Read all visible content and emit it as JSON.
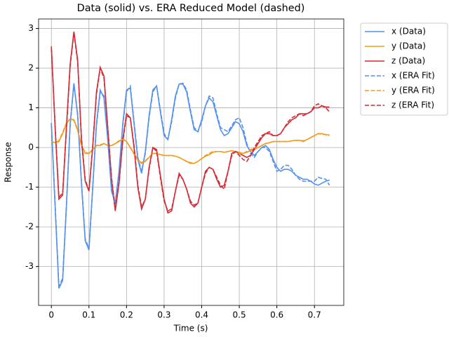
{
  "chart_data": {
    "type": "line",
    "title": "Data (solid) vs. ERA Reduced Model (dashed)",
    "x_label": "Time (s)",
    "y_label": "Response",
    "x": [
      0,
      0.01,
      0.02,
      0.03,
      0.04,
      0.05,
      0.06,
      0.07,
      0.08,
      0.09,
      0.1,
      0.11,
      0.12,
      0.13,
      0.14,
      0.15,
      0.16,
      0.17,
      0.18,
      0.19,
      0.2,
      0.21,
      0.22,
      0.23,
      0.24,
      0.25,
      0.26,
      0.27,
      0.28,
      0.29,
      0.3,
      0.31,
      0.32,
      0.33,
      0.34,
      0.35,
      0.36,
      0.37,
      0.38,
      0.39,
      0.4,
      0.41,
      0.42,
      0.43,
      0.44,
      0.45,
      0.46,
      0.47,
      0.48,
      0.49,
      0.5,
      0.51,
      0.52,
      0.53,
      0.54,
      0.55,
      0.56,
      0.57,
      0.58,
      0.59,
      0.6,
      0.61,
      0.62,
      0.63,
      0.64,
      0.65,
      0.66,
      0.67,
      0.68,
      0.69,
      0.7,
      0.71,
      0.72,
      0.73,
      0.74
    ],
    "series": [
      {
        "name": "x (Data)",
        "color": "#5591ee",
        "linestyle": "solid",
        "values": [
          0.62,
          -1.5,
          -3.55,
          -3.35,
          -1.5,
          0.6,
          1.62,
          0.8,
          -0.9,
          -2.35,
          -2.58,
          -1.0,
          0.6,
          1.45,
          1.25,
          0.2,
          -1.1,
          -1.4,
          -0.6,
          0.6,
          1.45,
          1.5,
          0.6,
          -0.3,
          -0.65,
          -0.1,
          0.8,
          1.45,
          1.55,
          0.9,
          0.3,
          0.2,
          0.7,
          1.3,
          1.6,
          1.6,
          1.4,
          0.9,
          0.45,
          0.4,
          0.7,
          1.05,
          1.25,
          1.15,
          0.8,
          0.45,
          0.3,
          0.35,
          0.5,
          0.65,
          0.6,
          0.4,
          0.05,
          -0.1,
          -0.2,
          -0.1,
          0.0,
          0.05,
          -0.05,
          -0.3,
          -0.5,
          -0.6,
          -0.55,
          -0.55,
          -0.6,
          -0.7,
          -0.75,
          -0.8,
          -0.8,
          -0.85,
          -0.92,
          -0.95,
          -0.9,
          -0.85,
          -0.82
        ]
      },
      {
        "name": "y (Data)",
        "color": "#f39c1f",
        "linestyle": "solid",
        "values": [
          0.15,
          0.12,
          0.15,
          0.35,
          0.6,
          0.72,
          0.7,
          0.45,
          0.05,
          -0.15,
          -0.15,
          -0.05,
          0.05,
          0.05,
          0.1,
          0.05,
          0.05,
          0.1,
          0.15,
          0.22,
          0.15,
          0.0,
          -0.15,
          -0.3,
          -0.4,
          -0.35,
          -0.25,
          -0.15,
          -0.15,
          -0.18,
          -0.2,
          -0.2,
          -0.2,
          -0.22,
          -0.25,
          -0.3,
          -0.35,
          -0.4,
          -0.4,
          -0.35,
          -0.28,
          -0.22,
          -0.18,
          -0.12,
          -0.1,
          -0.1,
          -0.12,
          -0.1,
          -0.08,
          -0.1,
          -0.12,
          -0.15,
          -0.12,
          -0.08,
          -0.05,
          0.0,
          0.05,
          0.1,
          0.12,
          0.15,
          0.15,
          0.15,
          0.15,
          0.15,
          0.17,
          0.18,
          0.18,
          0.15,
          0.2,
          0.25,
          0.3,
          0.35,
          0.35,
          0.32,
          0.32
        ]
      },
      {
        "name": "z (Data)",
        "color": "#d62a35",
        "linestyle": "solid",
        "values": [
          2.55,
          0.5,
          -1.3,
          -1.2,
          0.5,
          2.1,
          2.92,
          2.2,
          0.2,
          -0.85,
          -1.1,
          0.0,
          1.4,
          2.02,
          1.8,
          0.5,
          -0.8,
          -1.6,
          -0.9,
          0.2,
          0.85,
          0.75,
          0.0,
          -1.0,
          -1.55,
          -1.3,
          -0.5,
          0.0,
          -0.05,
          -0.7,
          -1.3,
          -1.65,
          -1.6,
          -1.1,
          -0.65,
          -0.8,
          -1.05,
          -1.4,
          -1.5,
          -1.4,
          -1.0,
          -0.6,
          -0.5,
          -0.55,
          -0.8,
          -1.0,
          -0.95,
          -0.6,
          -0.15,
          -0.1,
          -0.15,
          -0.2,
          -0.25,
          -0.2,
          -0.05,
          0.1,
          0.25,
          0.35,
          0.35,
          0.3,
          0.3,
          0.35,
          0.5,
          0.6,
          0.7,
          0.75,
          0.85,
          0.85,
          0.85,
          0.9,
          1.0,
          1.0,
          1.05,
          1.02,
          1.02
        ]
      },
      {
        "name": "x (ERA Fit)",
        "color": "#5591ee",
        "linestyle": "dashed",
        "values": [
          0.6,
          -1.4,
          -3.5,
          -3.3,
          -1.45,
          0.55,
          1.6,
          0.85,
          -0.85,
          -2.3,
          -2.55,
          -1.05,
          0.55,
          1.4,
          1.3,
          0.25,
          -1.05,
          -1.45,
          -0.65,
          0.55,
          1.4,
          1.55,
          0.65,
          -0.25,
          -0.6,
          -0.15,
          0.75,
          1.4,
          1.55,
          0.95,
          0.35,
          0.2,
          0.65,
          1.25,
          1.6,
          1.62,
          1.45,
          0.95,
          0.5,
          0.4,
          0.65,
          1.05,
          1.3,
          1.25,
          0.85,
          0.5,
          0.45,
          0.4,
          0.55,
          0.7,
          0.75,
          0.5,
          0.1,
          -0.15,
          -0.25,
          -0.1,
          0.0,
          0.0,
          -0.1,
          -0.35,
          -0.6,
          -0.55,
          -0.45,
          -0.45,
          -0.55,
          -0.7,
          -0.8,
          -0.85,
          -0.85,
          -0.85,
          -0.85,
          -0.75,
          -0.78,
          -0.8,
          -0.95
        ]
      },
      {
        "name": "y (ERA Fit)",
        "color": "#f39c1f",
        "linestyle": "dashed",
        "values": [
          0.15,
          0.12,
          0.17,
          0.38,
          0.62,
          0.72,
          0.68,
          0.42,
          0.05,
          -0.12,
          -0.15,
          -0.05,
          0.05,
          0.07,
          0.1,
          0.05,
          0.05,
          0.1,
          0.17,
          0.2,
          0.15,
          0.0,
          -0.17,
          -0.32,
          -0.38,
          -0.33,
          -0.25,
          -0.15,
          -0.15,
          -0.18,
          -0.2,
          -0.2,
          -0.2,
          -0.22,
          -0.25,
          -0.3,
          -0.35,
          -0.38,
          -0.4,
          -0.35,
          -0.28,
          -0.2,
          -0.15,
          -0.1,
          -0.1,
          -0.1,
          -0.12,
          -0.1,
          -0.08,
          -0.12,
          -0.15,
          -0.15,
          -0.1,
          -0.05,
          -0.02,
          0.0,
          0.05,
          0.1,
          0.12,
          0.15,
          0.15,
          0.15,
          0.15,
          0.15,
          0.17,
          0.18,
          0.18,
          0.17,
          0.2,
          0.25,
          0.3,
          0.35,
          0.33,
          0.33,
          0.3
        ]
      },
      {
        "name": "z (ERA Fit)",
        "color": "#d62a35",
        "linestyle": "dashed",
        "values": [
          2.5,
          0.55,
          -1.25,
          -1.15,
          0.45,
          2.05,
          2.9,
          2.15,
          0.25,
          -0.8,
          -1.1,
          0.05,
          1.35,
          2.0,
          1.75,
          0.5,
          -0.75,
          -1.55,
          -0.9,
          0.15,
          0.8,
          0.75,
          0.05,
          -0.95,
          -1.5,
          -1.3,
          -0.55,
          0.0,
          -0.1,
          -0.75,
          -1.35,
          -1.6,
          -1.55,
          -1.1,
          -0.7,
          -0.8,
          -1.05,
          -1.35,
          -1.45,
          -1.4,
          -1.0,
          -0.65,
          -0.5,
          -0.55,
          -0.75,
          -0.95,
          -1.05,
          -0.6,
          -0.2,
          -0.1,
          -0.2,
          -0.3,
          -0.35,
          -0.2,
          0.0,
          0.15,
          0.3,
          0.35,
          0.4,
          0.3,
          0.3,
          0.35,
          0.5,
          0.65,
          0.75,
          0.8,
          0.85,
          0.8,
          0.85,
          0.9,
          1.05,
          1.1,
          1.05,
          1.0,
          0.9
        ]
      }
    ],
    "xlim": [
      -0.034,
      0.778
    ],
    "ylim": [
      -3.98,
      3.24
    ],
    "xticks": [
      0.0,
      0.1,
      0.2,
      0.3,
      0.4,
      0.5,
      0.6,
      0.7
    ],
    "yticks": [
      -3,
      -2,
      -1,
      0,
      1,
      2,
      3
    ],
    "grid": true,
    "legend": "outside-upper-right"
  }
}
